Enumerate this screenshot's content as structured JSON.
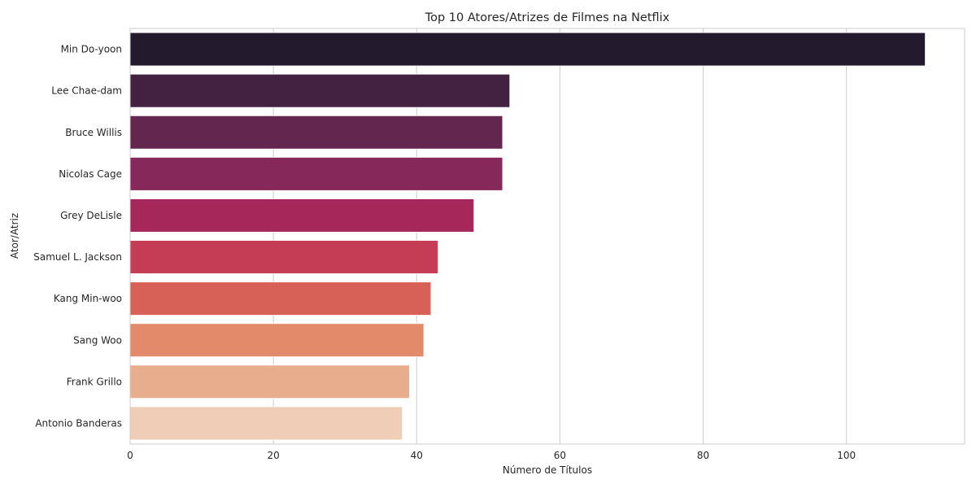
{
  "chart_data": {
    "type": "bar",
    "orientation": "horizontal",
    "title": "Top 10 Atores/Atrizes de Filmes na Netflix",
    "xlabel": "Número de Títulos",
    "ylabel": "Ator/Atriz",
    "categories": [
      "Min Do-yoon",
      "Lee Chae-dam",
      "Bruce Willis",
      "Nicolas Cage",
      "Grey DeLisle",
      "Samuel L. Jackson",
      "Kang Min-woo",
      "Sang Woo",
      "Frank Grillo",
      "Antonio Banderas"
    ],
    "values": [
      111,
      53,
      52,
      52,
      48,
      43,
      42,
      41,
      39,
      38
    ],
    "xlim": [
      0,
      116.5
    ],
    "xticks": [
      0,
      20,
      40,
      60,
      80,
      100
    ],
    "grid": true,
    "legend": "none",
    "palette": "rocket",
    "colors": [
      "#241a2e",
      "#432141",
      "#63264f",
      "#86295a",
      "#a6285a",
      "#c43d55",
      "#d76157",
      "#e28a69",
      "#e8ad8c",
      "#efcdb6"
    ]
  }
}
